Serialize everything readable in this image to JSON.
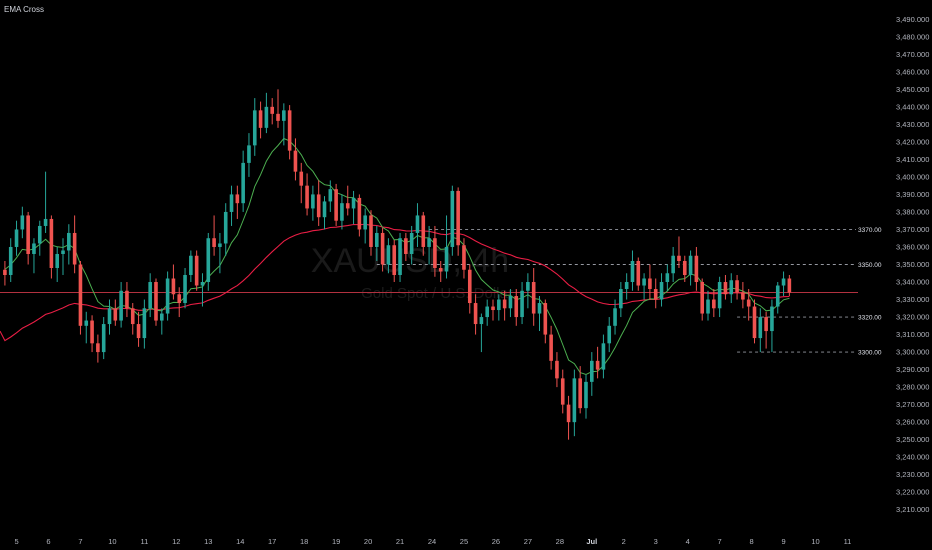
{
  "chart_data": {
    "type": "candlestick",
    "title": "EMA Cross",
    "watermark": {
      "symbol": "XAUUSD, 4h",
      "description": "Gold Spot / U.S. Dollar"
    },
    "colors": {
      "up": "#26a69a",
      "down": "#ef5350",
      "ema_fast": "#4caf50",
      "ema_slow": "#e91e45",
      "price_line": "#b2313f"
    },
    "y_axis": {
      "ylim": [
        3203,
        3493
      ],
      "tick_labels": [
        "3,490.000",
        "3,480.000",
        "3,470.000",
        "3,460.000",
        "3,450.000",
        "3,440.000",
        "3,430.000",
        "3,420.000",
        "3,410.000",
        "3,400.000",
        "3,390.000",
        "3,380.000",
        "3,370.000",
        "3,360.000",
        "3,350.000",
        "3,340.000",
        "3,330.000",
        "3,320.000",
        "3,310.000",
        "3,300.000",
        "3,290.000",
        "3,280.000",
        "3,270.000",
        "3,260.000",
        "3,250.000",
        "3,240.000",
        "3,230.000",
        "3,220.000",
        "3,210.000"
      ]
    },
    "x_axis": {
      "ticks": [
        {
          "label": "5",
          "index": 2
        },
        {
          "label": "6",
          "index": 7.5
        },
        {
          "label": "7",
          "index": 13
        },
        {
          "label": "10",
          "index": 18.5
        },
        {
          "label": "11",
          "index": 24
        },
        {
          "label": "12",
          "index": 29.5
        },
        {
          "label": "13",
          "index": 35
        },
        {
          "label": "14",
          "index": 40.5
        },
        {
          "label": "17",
          "index": 46
        },
        {
          "label": "18",
          "index": 51.5
        },
        {
          "label": "19",
          "index": 57
        },
        {
          "label": "20",
          "index": 62.5
        },
        {
          "label": "21",
          "index": 68
        },
        {
          "label": "24",
          "index": 73.5
        },
        {
          "label": "25",
          "index": 79
        },
        {
          "label": "26",
          "index": 84.5
        },
        {
          "label": "27",
          "index": 90
        },
        {
          "label": "28",
          "index": 95.5
        },
        {
          "label": "Jul",
          "index": 101,
          "bold": true
        },
        {
          "label": "2",
          "index": 106.5
        },
        {
          "label": "3",
          "index": 112
        },
        {
          "label": "4",
          "index": 117.5
        },
        {
          "label": "7",
          "index": 123
        },
        {
          "label": "8",
          "index": 128.5
        },
        {
          "label": "9",
          "index": 134
        },
        {
          "label": "10",
          "index": 139.5
        },
        {
          "label": "11",
          "index": 145
        }
      ],
      "total_slots": 148
    },
    "levels": [
      {
        "price": 3370,
        "label": "3370.00",
        "from_index": 73
      },
      {
        "price": 3350,
        "label": "3350.00",
        "from_index": 64
      },
      {
        "price": 3320,
        "label": "3320.00",
        "from_index": 126
      },
      {
        "price": 3300,
        "label": "3300.00",
        "from_index": 126
      }
    ],
    "current_price": 3334,
    "candles": [
      [
        3347,
        3352,
        3338,
        3344
      ],
      [
        3344,
        3365,
        3340,
        3360
      ],
      [
        3360,
        3375,
        3355,
        3370
      ],
      [
        3370,
        3383,
        3365,
        3378
      ],
      [
        3378,
        3380,
        3350,
        3356
      ],
      [
        3356,
        3365,
        3345,
        3362
      ],
      [
        3362,
        3375,
        3355,
        3372
      ],
      [
        3372,
        3403,
        3368,
        3376
      ],
      [
        3376,
        3378,
        3342,
        3348
      ],
      [
        3348,
        3360,
        3340,
        3356
      ],
      [
        3356,
        3365,
        3344,
        3358
      ],
      [
        3358,
        3373,
        3350,
        3368
      ],
      [
        3368,
        3378,
        3345,
        3350
      ],
      [
        3350,
        3352,
        3310,
        3315
      ],
      [
        3315,
        3323,
        3305,
        3318
      ],
      [
        3318,
        3321,
        3300,
        3305
      ],
      [
        3305,
        3310,
        3294,
        3300
      ],
      [
        3300,
        3320,
        3296,
        3316
      ],
      [
        3316,
        3330,
        3310,
        3325
      ],
      [
        3325,
        3330,
        3315,
        3318
      ],
      [
        3318,
        3340,
        3314,
        3335
      ],
      [
        3335,
        3340,
        3320,
        3325
      ],
      [
        3325,
        3328,
        3310,
        3316
      ],
      [
        3316,
        3323,
        3303,
        3308
      ],
      [
        3308,
        3330,
        3302,
        3325
      ],
      [
        3325,
        3345,
        3320,
        3340
      ],
      [
        3340,
        3342,
        3315,
        3318
      ],
      [
        3318,
        3325,
        3310,
        3322
      ],
      [
        3322,
        3346,
        3318,
        3342
      ],
      [
        3342,
        3350,
        3330,
        3333
      ],
      [
        3333,
        3337,
        3320,
        3328
      ],
      [
        3328,
        3348,
        3325,
        3344
      ],
      [
        3344,
        3358,
        3340,
        3355
      ],
      [
        3355,
        3358,
        3335,
        3338
      ],
      [
        3338,
        3345,
        3326,
        3340
      ],
      [
        3340,
        3368,
        3335,
        3365
      ],
      [
        3365,
        3378,
        3355,
        3360
      ],
      [
        3360,
        3368,
        3345,
        3362
      ],
      [
        3362,
        3385,
        3355,
        3380
      ],
      [
        3380,
        3395,
        3372,
        3390
      ],
      [
        3390,
        3395,
        3376,
        3385
      ],
      [
        3385,
        3415,
        3380,
        3408
      ],
      [
        3408,
        3425,
        3400,
        3418
      ],
      [
        3418,
        3445,
        3412,
        3438
      ],
      [
        3438,
        3443,
        3422,
        3428
      ],
      [
        3428,
        3448,
        3425,
        3440
      ],
      [
        3440,
        3445,
        3430,
        3436
      ],
      [
        3436,
        3450,
        3428,
        3432
      ],
      [
        3432,
        3442,
        3418,
        3438
      ],
      [
        3438,
        3441,
        3410,
        3415
      ],
      [
        3415,
        3422,
        3398,
        3403
      ],
      [
        3403,
        3408,
        3385,
        3395
      ],
      [
        3395,
        3402,
        3378,
        3382
      ],
      [
        3382,
        3395,
        3375,
        3390
      ],
      [
        3390,
        3398,
        3372,
        3377
      ],
      [
        3377,
        3389,
        3370,
        3386
      ],
      [
        3386,
        3398,
        3380,
        3393
      ],
      [
        3393,
        3396,
        3372,
        3375
      ],
      [
        3375,
        3390,
        3370,
        3385
      ],
      [
        3385,
        3395,
        3378,
        3382
      ],
      [
        3382,
        3392,
        3373,
        3388
      ],
      [
        3388,
        3390,
        3366,
        3370
      ],
      [
        3370,
        3382,
        3362,
        3378
      ],
      [
        3378,
        3381,
        3355,
        3360
      ],
      [
        3360,
        3372,
        3352,
        3368
      ],
      [
        3368,
        3371,
        3346,
        3350
      ],
      [
        3350,
        3365,
        3345,
        3361
      ],
      [
        3361,
        3364,
        3340,
        3344
      ],
      [
        3344,
        3368,
        3340,
        3365
      ],
      [
        3365,
        3368,
        3352,
        3356
      ],
      [
        3356,
        3372,
        3350,
        3368
      ],
      [
        3368,
        3385,
        3360,
        3378
      ],
      [
        3378,
        3380,
        3355,
        3360
      ],
      [
        3360,
        3372,
        3350,
        3365
      ],
      [
        3365,
        3372,
        3343,
        3348
      ],
      [
        3348,
        3352,
        3340,
        3346
      ],
      [
        3346,
        3378,
        3342,
        3360
      ],
      [
        3360,
        3395,
        3355,
        3392
      ],
      [
        3392,
        3394,
        3355,
        3361
      ],
      [
        3361,
        3365,
        3342,
        3347
      ],
      [
        3347,
        3350,
        3322,
        3328
      ],
      [
        3328,
        3333,
        3310,
        3316
      ],
      [
        3316,
        3322,
        3300,
        3320
      ],
      [
        3320,
        3330,
        3315,
        3326
      ],
      [
        3326,
        3330,
        3318,
        3324
      ],
      [
        3324,
        3333,
        3318,
        3330
      ],
      [
        3330,
        3335,
        3318,
        3325
      ],
      [
        3325,
        3336,
        3320,
        3332
      ],
      [
        3332,
        3336,
        3315,
        3320
      ],
      [
        3320,
        3340,
        3316,
        3335
      ],
      [
        3335,
        3345,
        3325,
        3340
      ],
      [
        3340,
        3348,
        3315,
        3322
      ],
      [
        3322,
        3332,
        3312,
        3328
      ],
      [
        3328,
        3330,
        3305,
        3310
      ],
      [
        3310,
        3315,
        3290,
        3295
      ],
      [
        3295,
        3300,
        3280,
        3285
      ],
      [
        3285,
        3290,
        3265,
        3270
      ],
      [
        3270,
        3275,
        3250,
        3260
      ],
      [
        3260,
        3290,
        3252,
        3285
      ],
      [
        3285,
        3292,
        3265,
        3268
      ],
      [
        3268,
        3287,
        3262,
        3283
      ],
      [
        3283,
        3300,
        3275,
        3295
      ],
      [
        3295,
        3303,
        3285,
        3290
      ],
      [
        3290,
        3310,
        3285,
        3305
      ],
      [
        3305,
        3320,
        3300,
        3315
      ],
      [
        3315,
        3330,
        3310,
        3325
      ],
      [
        3325,
        3340,
        3320,
        3336
      ],
      [
        3336,
        3345,
        3330,
        3340
      ],
      [
        3340,
        3358,
        3335,
        3352
      ],
      [
        3352,
        3354,
        3335,
        3338
      ],
      [
        3338,
        3345,
        3330,
        3342
      ],
      [
        3342,
        3350,
        3330,
        3336
      ],
      [
        3336,
        3342,
        3325,
        3330
      ],
      [
        3330,
        3345,
        3326,
        3340
      ],
      [
        3340,
        3350,
        3335,
        3345
      ],
      [
        3345,
        3360,
        3340,
        3355
      ],
      [
        3355,
        3366,
        3348,
        3352
      ],
      [
        3352,
        3355,
        3340,
        3344
      ],
      [
        3344,
        3358,
        3338,
        3355
      ],
      [
        3355,
        3360,
        3335,
        3340
      ],
      [
        3340,
        3342,
        3318,
        3322
      ],
      [
        3322,
        3335,
        3318,
        3330
      ],
      [
        3330,
        3336,
        3320,
        3325
      ],
      [
        3325,
        3343,
        3320,
        3340
      ],
      [
        3340,
        3344,
        3330,
        3333
      ],
      [
        3333,
        3345,
        3328,
        3341
      ],
      [
        3341,
        3344,
        3330,
        3334
      ],
      [
        3334,
        3340,
        3325,
        3330
      ],
      [
        3330,
        3336,
        3318,
        3326
      ],
      [
        3326,
        3330,
        3305,
        3308
      ],
      [
        3308,
        3325,
        3300,
        3320
      ],
      [
        3320,
        3323,
        3302,
        3312
      ],
      [
        3312,
        3330,
        3300,
        3326
      ],
      [
        3326,
        3340,
        3322,
        3338
      ],
      [
        3338,
        3346,
        3332,
        3342
      ],
      [
        3342,
        3344,
        3332,
        3334
      ]
    ]
  }
}
